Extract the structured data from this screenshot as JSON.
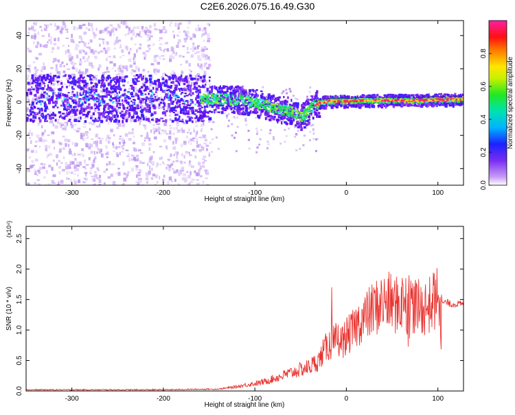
{
  "figure": {
    "title": "C2E6.2026.075.16.49.G30"
  },
  "colors": {
    "snr_line": "#e8322e",
    "axis": "#000000",
    "ridge_core": "#ff2a55",
    "ridge_mid": "#33dd44",
    "ridge_edge": "#55d8ff",
    "band_deep": "#5a12ee",
    "scatter_light": "#cdb2f4"
  },
  "chart_data": [
    {
      "type": "heatmap",
      "xlabel": "Height of straight line (km)",
      "ylabel": "Frequency (Hz)",
      "xlim": [
        -350,
        128
      ],
      "ylim": [
        -50,
        49
      ],
      "x_ticks": [
        -300,
        -200,
        -100,
        0,
        100
      ],
      "y_ticks": [
        -40,
        -20,
        0,
        20,
        40
      ],
      "grid": false,
      "colorbar": {
        "label": "Normalized spectral amplitude",
        "range": [
          0,
          1
        ],
        "ticks": [
          0.0,
          0.2,
          0.4,
          0.6,
          0.8
        ],
        "tick_labels": [
          "0.0",
          "0.2",
          "0.4",
          "0.6",
          "0.8"
        ],
        "colormap": "rainbow (violet-blue-cyan-green-yellow-red-magenta)"
      },
      "ridge": {
        "x": [
          -350,
          -300,
          -250,
          -200,
          -150,
          -120,
          -100,
          -80,
          -60,
          -50,
          -45,
          -40,
          -35,
          -30,
          -20,
          0,
          20,
          50,
          80,
          100,
          128
        ],
        "y": [
          3,
          3,
          3,
          3,
          2.5,
          2,
          0,
          -3,
          -5,
          -9,
          -6,
          -3,
          -1,
          0,
          1,
          1,
          1.5,
          1.5,
          1.5,
          2,
          2
        ]
      }
    },
    {
      "type": "line",
      "xlabel": "Height of straight line (km)",
      "ylabel": "SNR (10 * v/v)",
      "y_multiplier": "(x10⁴)",
      "xlim": [
        -350,
        128
      ],
      "ylim": [
        0,
        2.7
      ],
      "x_ticks": [
        -300,
        -200,
        -100,
        0,
        100
      ],
      "y_ticks": [
        0.0,
        0.5,
        1.0,
        1.5,
        2.0,
        2.5
      ],
      "y_tick_labels": [
        "0.0",
        "0.5",
        "1.0",
        "1.5",
        "2.0",
        "2.5"
      ],
      "grid": false,
      "series": [
        {
          "x": [
            -350,
            -300,
            -250,
            -200,
            -150,
            -140,
            -130,
            -120,
            -110,
            -100,
            -90,
            -80,
            -70,
            -60,
            -50,
            -40,
            -30,
            -25,
            -20,
            -15,
            -10,
            -5,
            0,
            5,
            10,
            15,
            20,
            30,
            40,
            50,
            55,
            60,
            65,
            70,
            80,
            90,
            95,
            100,
            105,
            110,
            115,
            120,
            128
          ],
          "y": [
            0.02,
            0.02,
            0.02,
            0.02,
            0.03,
            0.03,
            0.05,
            0.07,
            0.1,
            0.12,
            0.15,
            0.2,
            0.25,
            0.3,
            0.35,
            0.4,
            0.5,
            0.65,
            0.75,
            0.8,
            0.85,
            0.8,
            0.9,
            0.95,
            1.05,
            1.15,
            1.2,
            1.35,
            1.45,
            1.45,
            1.4,
            1.45,
            1.5,
            1.45,
            1.35,
            1.4,
            1.45,
            1.55,
            1.45,
            1.45,
            1.42,
            1.43,
            1.42
          ]
        }
      ]
    }
  ]
}
